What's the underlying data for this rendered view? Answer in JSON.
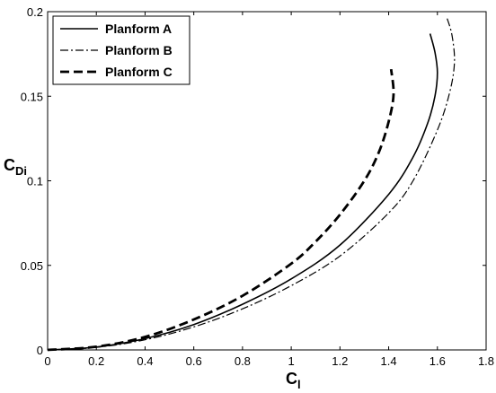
{
  "chart_data": {
    "type": "line",
    "xlabel": {
      "main": "C",
      "sub": "l"
    },
    "ylabel": {
      "main": "C",
      "sub": "Di"
    },
    "xlim": [
      0,
      1.8
    ],
    "ylim": [
      0,
      0.2
    ],
    "x_ticks": [
      "0",
      "0.2",
      "0.4",
      "0.6",
      "0.8",
      "1",
      "1.2",
      "1.4",
      "1.6",
      "1.8"
    ],
    "y_ticks": [
      "0",
      "0.05",
      "0.1",
      "0.15",
      "0.2"
    ],
    "grid": false,
    "legend_position": "top-left",
    "series": [
      {
        "name": "Planform A",
        "style": "solid",
        "color": "#000000",
        "points": [
          [
            0,
            0
          ],
          [
            0.2,
            0.0017
          ],
          [
            0.4,
            0.0067
          ],
          [
            0.6,
            0.015
          ],
          [
            0.8,
            0.027
          ],
          [
            1.0,
            0.042
          ],
          [
            1.2,
            0.062
          ],
          [
            1.4,
            0.092
          ],
          [
            1.5,
            0.114
          ],
          [
            1.56,
            0.134
          ],
          [
            1.59,
            0.15
          ],
          [
            1.6,
            0.164
          ],
          [
            1.59,
            0.176
          ],
          [
            1.57,
            0.187
          ]
        ]
      },
      {
        "name": "Planform B",
        "style": "dash-dot",
        "color": "#000000",
        "points": [
          [
            0,
            0
          ],
          [
            0.2,
            0.0015
          ],
          [
            0.4,
            0.006
          ],
          [
            0.6,
            0.0136
          ],
          [
            0.8,
            0.0243
          ],
          [
            1.0,
            0.038
          ],
          [
            1.2,
            0.0555
          ],
          [
            1.4,
            0.081
          ],
          [
            1.5,
            0.1
          ],
          [
            1.6,
            0.13
          ],
          [
            1.65,
            0.152
          ],
          [
            1.67,
            0.17
          ],
          [
            1.66,
            0.186
          ],
          [
            1.64,
            0.196
          ]
        ]
      },
      {
        "name": "Planform C",
        "style": "dashed",
        "color": "#000000",
        "points": [
          [
            0,
            0
          ],
          [
            0.2,
            0.0019
          ],
          [
            0.4,
            0.0077
          ],
          [
            0.6,
            0.018
          ],
          [
            0.8,
            0.032
          ],
          [
            1.0,
            0.051
          ],
          [
            1.1,
            0.064
          ],
          [
            1.2,
            0.08
          ],
          [
            1.3,
            0.1
          ],
          [
            1.36,
            0.117
          ],
          [
            1.4,
            0.135
          ],
          [
            1.42,
            0.151
          ],
          [
            1.41,
            0.166
          ]
        ]
      }
    ]
  }
}
